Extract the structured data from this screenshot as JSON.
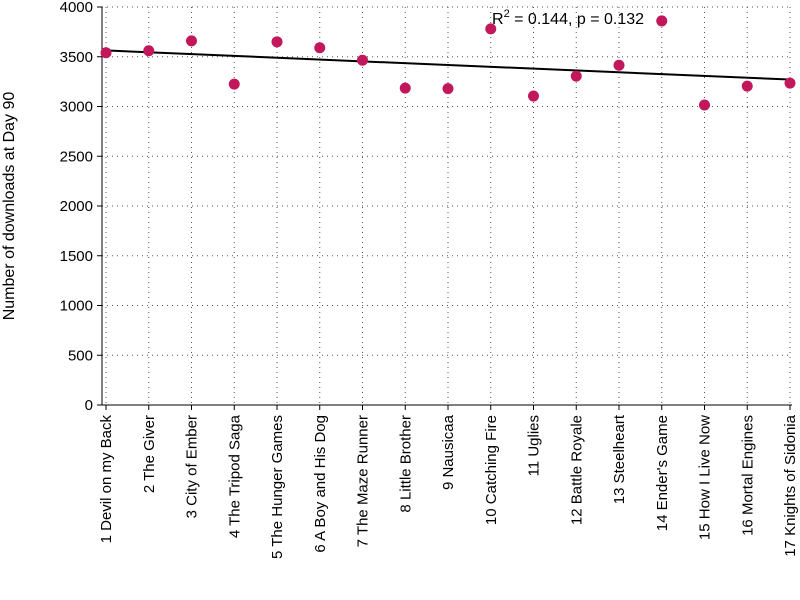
{
  "chart_data": {
    "type": "scatter",
    "title": "",
    "xlabel": "",
    "ylabel": "Number of downloads at Day 90",
    "ylim": [
      0,
      4000
    ],
    "yticks": [
      0,
      500,
      1000,
      1500,
      2000,
      2500,
      3000,
      3500,
      4000
    ],
    "grid": true,
    "categories": [
      "1 Devil on my Back",
      "2 The Giver",
      "3 City of Ember",
      "4 The Tripod Saga",
      "5 The Hunger Games",
      "6 A Boy and His Dog",
      "7 The Maze Runner",
      "8 Little Brother",
      "9 Nausicaa",
      "10 Catching Fire",
      "11 Uglies",
      "12 Battle Royale",
      "13 Steelheart",
      "14 Ender's Game",
      "15 How I Live Now",
      "16 Mortal Engines",
      "17 Knights of Sidonia"
    ],
    "values": [
      3540,
      3560,
      3660,
      3225,
      3650,
      3590,
      3465,
      3185,
      3180,
      3780,
      3105,
      3305,
      3415,
      3860,
      3015,
      3205,
      3235
    ],
    "point_color": "#c2185b",
    "trendline": {
      "y_start": 3565,
      "y_end": 3270,
      "color": "#000000"
    },
    "annotation": {
      "r2": "0.144",
      "p": "0.132"
    }
  }
}
